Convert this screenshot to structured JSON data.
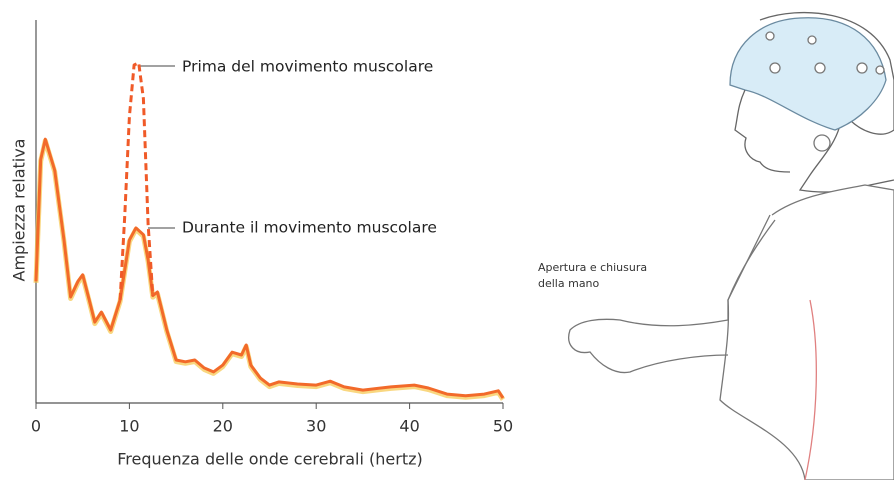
{
  "chart_data": {
    "type": "line",
    "xlabel": "Frequenza delle onde cerebrali (hertz)",
    "ylabel": "Ampiezza relativa",
    "xlim": [
      0,
      50
    ],
    "xticks": [
      0,
      10,
      20,
      30,
      40,
      50
    ],
    "ylim": [
      0,
      100
    ],
    "series": [
      {
        "name": "Durante il movimento muscolare",
        "color": "#f26a2a",
        "dash": false,
        "x": [
          0,
          0.5,
          1,
          2,
          3,
          3.7,
          4.5,
          5,
          5.7,
          6.3,
          7,
          8,
          9,
          10,
          10.7,
          11.5,
          12,
          12.5,
          13,
          14,
          15,
          16,
          17,
          18,
          19,
          20,
          21,
          22,
          22.5,
          23,
          24,
          25,
          26,
          28,
          30,
          31.5,
          33,
          35,
          38,
          40.5,
          42,
          44,
          46,
          48,
          49.5,
          50
        ],
        "values": [
          34,
          68,
          73.7,
          65,
          45.5,
          29.6,
          34,
          35.8,
          28.8,
          22.6,
          25.4,
          20.4,
          28.8,
          45.5,
          48.9,
          47,
          40,
          30,
          31,
          20.4,
          12,
          11.5,
          12,
          9.8,
          8.7,
          10.6,
          14.2,
          13.4,
          16.2,
          10.6,
          7,
          5,
          5.9,
          5.3,
          5,
          6.1,
          4.5,
          3.6,
          4.5,
          5,
          4.2,
          2.5,
          2,
          2.5,
          3.4,
          1.4
        ]
      },
      {
        "name": "Prima del movimento muscolare",
        "color": "#f05a28",
        "dash": true,
        "x": [
          9,
          9.5,
          10,
          10.5,
          11,
          11.5,
          12,
          12.5
        ],
        "values": [
          28.8,
          52,
          80,
          94.4,
          95,
          85,
          50,
          30
        ]
      }
    ]
  },
  "illustration": {
    "caption_lines": [
      "Apertura e chiusura",
      "della mano"
    ]
  }
}
